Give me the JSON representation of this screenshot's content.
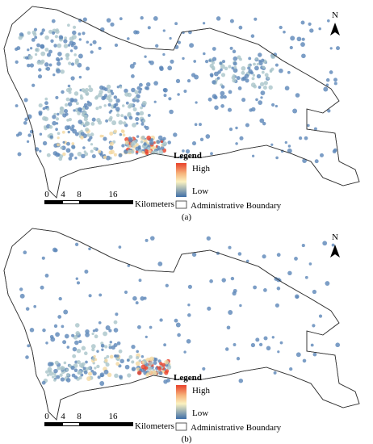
{
  "panels": [
    {
      "label": "(a)",
      "north": "N",
      "legend": {
        "title": "Legend",
        "high": "High",
        "low": "Low",
        "boundary": "Administrative Boundary"
      },
      "scale": {
        "ticks": [
          0,
          4,
          8,
          16
        ],
        "unit": "Kilometers"
      }
    },
    {
      "label": "(b)",
      "north": "N",
      "legend": {
        "title": "Legend",
        "high": "High",
        "low": "Low",
        "boundary": "Administrative Boundary"
      },
      "scale": {
        "ticks": [
          0,
          4,
          8,
          16
        ],
        "unit": "Kilometers"
      }
    }
  ]
}
